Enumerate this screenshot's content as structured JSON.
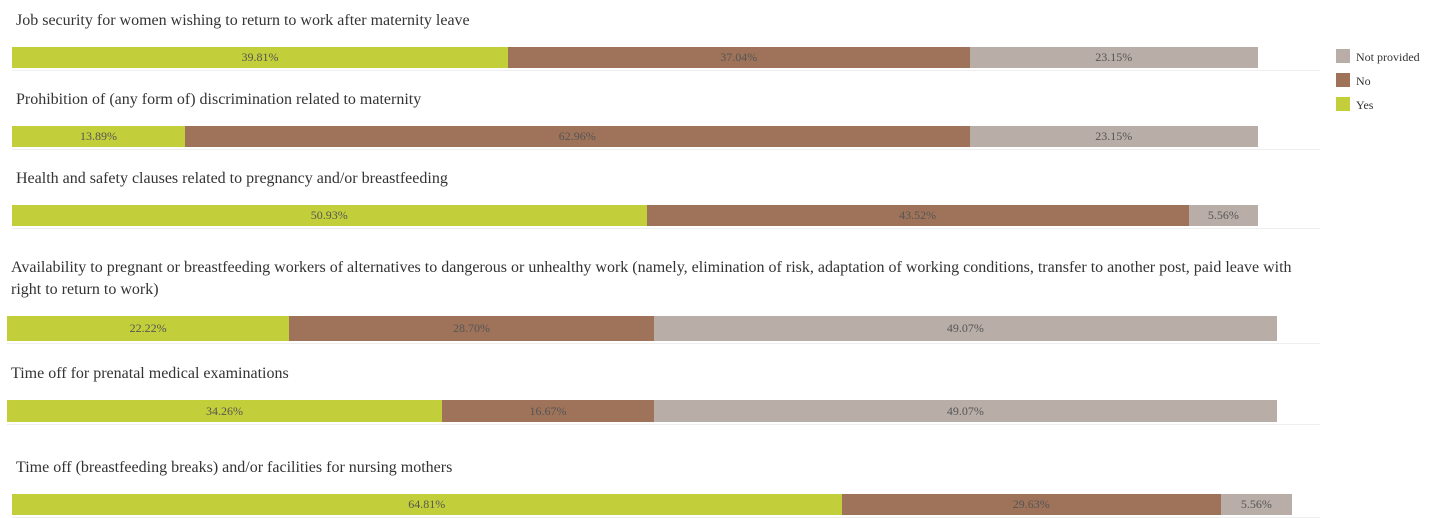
{
  "chart_data": {
    "type": "stacked-bar-horizontal",
    "categories": [
      "Job security for women wishing to return to work after maternity leave",
      "Prohibition of (any form of) discrimination related to maternity",
      "Health and safety clauses related to pregnancy and/or breastfeeding",
      "Availability to pregnant or breastfeeding workers of alternatives to dangerous or unhealthy work (namely, elimination of risk, adaptation of working conditions, transfer to another post, paid leave with right to return to work)",
      "Time off for prenatal medical examinations",
      "Time off (breastfeeding breaks) and/or facilities for nursing mothers"
    ],
    "series": [
      {
        "name": "Yes",
        "color": "#c3cf3a",
        "values": [
          39.81,
          13.89,
          50.93,
          22.22,
          34.26,
          64.81
        ],
        "value_labels": [
          "39.81%",
          "13.89%",
          "50.93%",
          "22.22%",
          "34.26%",
          "64.81%"
        ]
      },
      {
        "name": "No",
        "color": "#9e735a",
        "values": [
          37.04,
          62.96,
          43.52,
          28.7,
          16.67,
          29.63
        ],
        "value_labels": [
          "37.04%",
          "62.96%",
          "43.52%",
          "28.70%",
          "16.67%",
          "29.63%"
        ]
      },
      {
        "name": "Not provided",
        "color": "#b9ada7",
        "values": [
          23.15,
          23.15,
          5.56,
          49.07,
          49.07,
          5.56
        ],
        "value_labels": [
          "23.15%",
          "23.15%",
          "5.56%",
          "49.07%",
          "49.07%",
          "5.56%"
        ]
      }
    ],
    "legend": "top-right"
  }
}
